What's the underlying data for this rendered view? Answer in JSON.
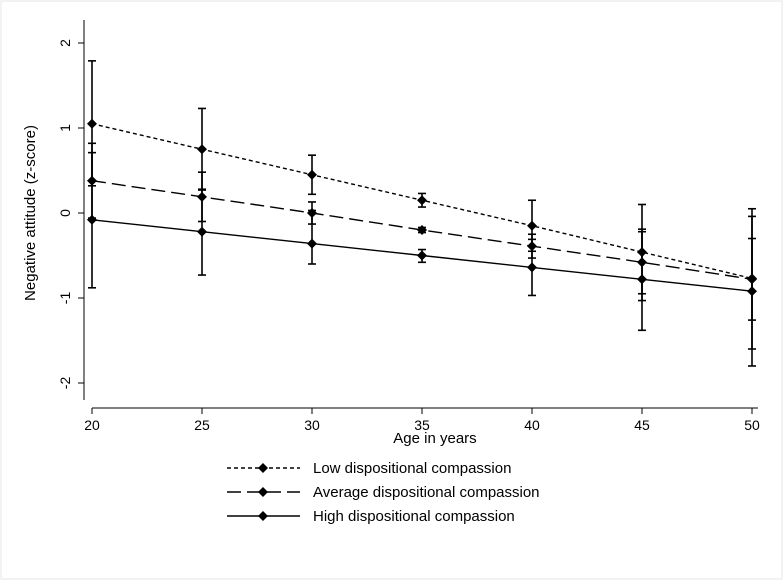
{
  "chart_data": {
    "type": "line",
    "title": "",
    "xlabel": "Age in years",
    "ylabel": "Negative attitude (z-score)",
    "x": [
      20,
      25,
      30,
      35,
      40,
      45,
      50
    ],
    "xticks": [
      "20",
      "25",
      "30",
      "35",
      "40",
      "45",
      "50"
    ],
    "yticks": [
      "-2",
      "-1",
      "0",
      "1",
      "2"
    ],
    "xlim": [
      20,
      50
    ],
    "ylim": [
      -2,
      2
    ],
    "legend_position": "bottom",
    "grid": false,
    "series": [
      {
        "name": "Low dispositional compassion",
        "dash": "short-dash",
        "values": [
          1.05,
          0.75,
          0.45,
          0.15,
          -0.15,
          -0.46,
          -0.77
        ],
        "lower": [
          0.32,
          0.27,
          0.22,
          0.07,
          -0.45,
          -1.03,
          -1.6
        ],
        "upper": [
          1.79,
          1.23,
          0.68,
          0.23,
          0.15,
          0.1,
          0.05
        ]
      },
      {
        "name": "Average dispositional compassion",
        "dash": "long-dash",
        "values": [
          0.38,
          0.19,
          0.0,
          -0.2,
          -0.39,
          -0.58,
          -0.78
        ],
        "lower": [
          -0.06,
          -0.1,
          -0.13,
          -0.23,
          -0.53,
          -0.95,
          -1.26
        ],
        "upper": [
          0.82,
          0.48,
          0.13,
          -0.17,
          -0.25,
          -0.22,
          -0.3
        ]
      },
      {
        "name": "High dispositional compassion",
        "dash": "solid",
        "values": [
          -0.08,
          -0.22,
          -0.36,
          -0.5,
          -0.64,
          -0.78,
          -0.92
        ],
        "lower": [
          -0.88,
          -0.73,
          -0.6,
          -0.58,
          -0.97,
          -1.38,
          -1.8
        ],
        "upper": [
          0.71,
          0.28,
          0.03,
          -0.43,
          -0.31,
          -0.19,
          -0.04
        ]
      }
    ]
  }
}
